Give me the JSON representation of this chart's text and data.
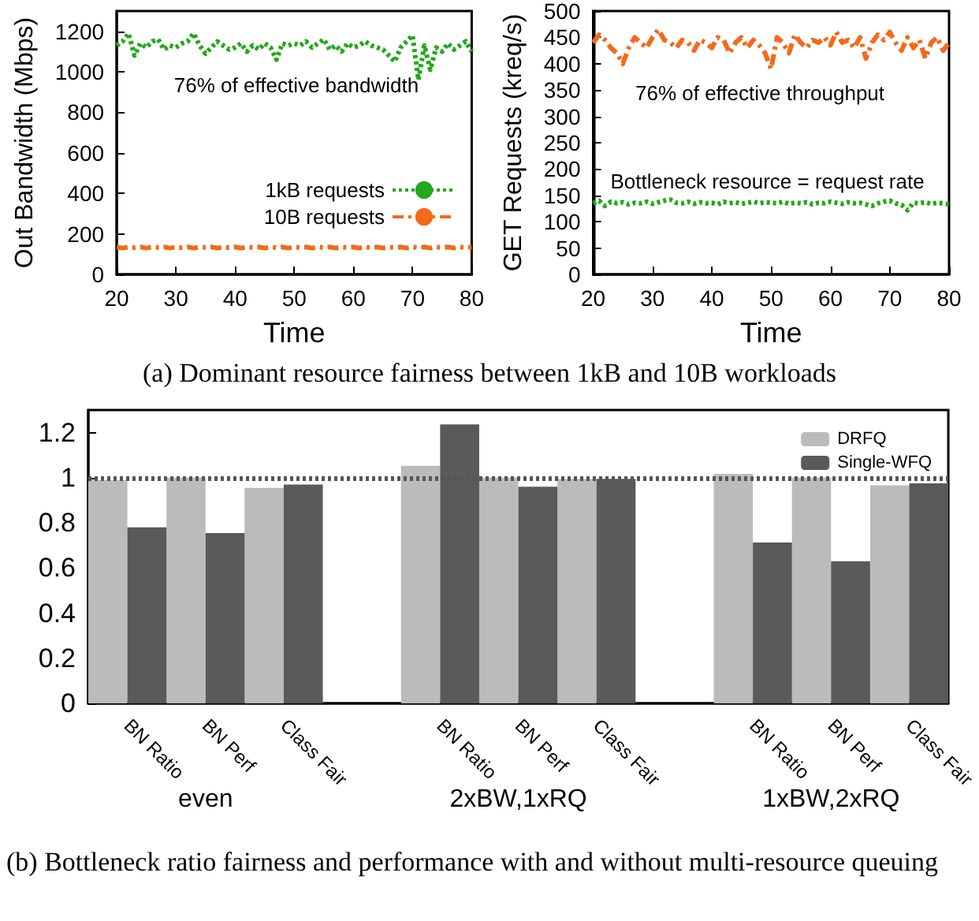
{
  "chart_data": [
    {
      "type": "line",
      "title": "(a) Dominant resource fairness between 1kB and 10B workloads",
      "xlabel": "Time",
      "ylabel": "Out Bandwidth (Mbps)",
      "annotations": [
        "76% of effective bandwidth"
      ],
      "x": [
        20,
        21,
        22,
        23,
        24,
        25,
        26,
        27,
        28,
        29,
        30,
        31,
        32,
        33,
        34,
        35,
        36,
        37,
        38,
        39,
        40,
        41,
        42,
        43,
        44,
        45,
        46,
        47,
        48,
        49,
        50,
        51,
        52,
        53,
        54,
        55,
        56,
        57,
        58,
        59,
        60,
        61,
        62,
        63,
        64,
        65,
        66,
        67,
        68,
        69,
        70,
        71,
        72,
        73,
        74,
        75,
        76,
        77,
        78,
        79,
        80
      ],
      "xlim": [
        20,
        80
      ],
      "xticks": [
        20,
        30,
        40,
        50,
        60,
        70,
        80
      ],
      "ylim": [
        0,
        1300
      ],
      "yticks": [
        0,
        200,
        400,
        600,
        800,
        1000,
        1200
      ],
      "legend": "bottom right",
      "grid": false,
      "series": [
        {
          "name": "1kB requests",
          "color": "#22a81a",
          "line_style": "dotted",
          "values": [
            1130,
            1150,
            1190,
            1080,
            1140,
            1120,
            1150,
            1160,
            1110,
            1130,
            1120,
            1140,
            1150,
            1190,
            1130,
            1090,
            1120,
            1150,
            1130,
            1110,
            1120,
            1140,
            1100,
            1130,
            1110,
            1140,
            1120,
            1060,
            1140,
            1130,
            1140,
            1130,
            1150,
            1120,
            1140,
            1160,
            1110,
            1130,
            1100,
            1140,
            1120,
            1130,
            1150,
            1130,
            1120,
            1110,
            1080,
            1050,
            1120,
            1150,
            1180,
            960,
            1130,
            1010,
            1120,
            1100,
            1140,
            1110,
            1130,
            1150,
            1100
          ]
        },
        {
          "name": "10B requests",
          "color": "#f26a1b",
          "line_style": "dashed",
          "values": [
            135,
            130,
            135,
            132,
            135,
            130,
            135,
            133,
            135,
            130,
            135,
            132,
            135,
            130,
            135,
            133,
            135,
            130,
            135,
            132,
            135,
            130,
            135,
            133,
            135,
            130,
            135,
            132,
            135,
            130,
            135,
            133,
            135,
            130,
            135,
            132,
            135,
            130,
            135,
            133,
            135,
            130,
            135,
            132,
            135,
            130,
            135,
            133,
            135,
            130,
            135,
            132,
            135,
            130,
            135,
            133,
            135,
            130,
            135,
            132,
            135
          ]
        }
      ]
    },
    {
      "type": "line",
      "xlabel": "Time",
      "ylabel": "GET Requests (kreq/s)",
      "annotations": [
        "76% of effective throughput",
        "Bottleneck resource = request rate"
      ],
      "x": [
        20,
        21,
        22,
        23,
        24,
        25,
        26,
        27,
        28,
        29,
        30,
        31,
        32,
        33,
        34,
        35,
        36,
        37,
        38,
        39,
        40,
        41,
        42,
        43,
        44,
        45,
        46,
        47,
        48,
        49,
        50,
        51,
        52,
        53,
        54,
        55,
        56,
        57,
        58,
        59,
        60,
        61,
        62,
        63,
        64,
        65,
        66,
        67,
        68,
        69,
        70,
        71,
        72,
        73,
        74,
        75,
        76,
        77,
        78,
        79,
        80
      ],
      "xlim": [
        20,
        80
      ],
      "xticks": [
        20,
        30,
        40,
        50,
        60,
        70,
        80
      ],
      "ylim": [
        0,
        500
      ],
      "yticks": [
        0,
        50,
        100,
        150,
        200,
        250,
        300,
        350,
        400,
        450,
        500
      ],
      "grid": false,
      "series": [
        {
          "color": "#f26a1b",
          "line_style": "dashed",
          "values": [
            440,
            455,
            445,
            430,
            420,
            400,
            430,
            450,
            440,
            430,
            450,
            465,
            445,
            440,
            430,
            445,
            440,
            425,
            445,
            440,
            430,
            450,
            445,
            420,
            440,
            450,
            430,
            445,
            435,
            420,
            390,
            450,
            440,
            420,
            455,
            440,
            430,
            445,
            440,
            450,
            435,
            460,
            440,
            445,
            430,
            450,
            410,
            440,
            455,
            445,
            460,
            440,
            425,
            450,
            430,
            445,
            410,
            440,
            450,
            425,
            440
          ]
        },
        {
          "color": "#22a81a",
          "line_style": "dotted",
          "values": [
            135,
            140,
            130,
            138,
            135,
            137,
            133,
            136,
            135,
            138,
            134,
            137,
            140,
            142,
            136,
            135,
            138,
            134,
            137,
            135,
            136,
            133,
            138,
            135,
            137,
            134,
            136,
            138,
            135,
            137,
            136,
            135,
            138,
            134,
            136,
            135,
            137,
            133,
            136,
            135,
            138,
            136,
            134,
            137,
            135,
            136,
            133,
            130,
            135,
            138,
            140,
            135,
            132,
            122,
            136,
            135,
            137,
            134,
            136,
            135,
            133
          ]
        }
      ]
    },
    {
      "type": "bar",
      "title": "(b) Bottleneck ratio fairness and performance with and without multi-resource queuing",
      "categories": [
        "BN Ratio",
        "BN Perf",
        "Class Fair",
        null,
        "BN Ratio",
        "BN Perf",
        "Class Fair",
        null,
        "BN Ratio",
        "BN Perf",
        "Class Fair"
      ],
      "annotations": [
        "even",
        "2xBW,1xRQ",
        "1xBW,2xRQ"
      ],
      "ylim": [
        0,
        1.3
      ],
      "yticks": [
        0,
        0.2,
        0.4,
        0.6,
        0.8,
        1,
        1.2
      ],
      "legend": "top right",
      "grid": false,
      "ref_lines": [
        {
          "axis": "y",
          "value": 1,
          "line_style": "dotted",
          "color": "#555555"
        }
      ],
      "series": [
        {
          "name": "DRFQ",
          "color": "#bbbbbb",
          "values": [
            0.99,
            1.0,
            0.955,
            null,
            1.053,
            1.0,
            0.995,
            null,
            1.017,
            1.0,
            0.966
          ]
        },
        {
          "name": "Single-WFQ",
          "color": "#5a5a5a",
          "values": [
            0.78,
            0.755,
            0.97,
            null,
            1.236,
            0.96,
            0.995,
            null,
            0.713,
            0.63,
            0.975
          ]
        }
      ]
    }
  ]
}
